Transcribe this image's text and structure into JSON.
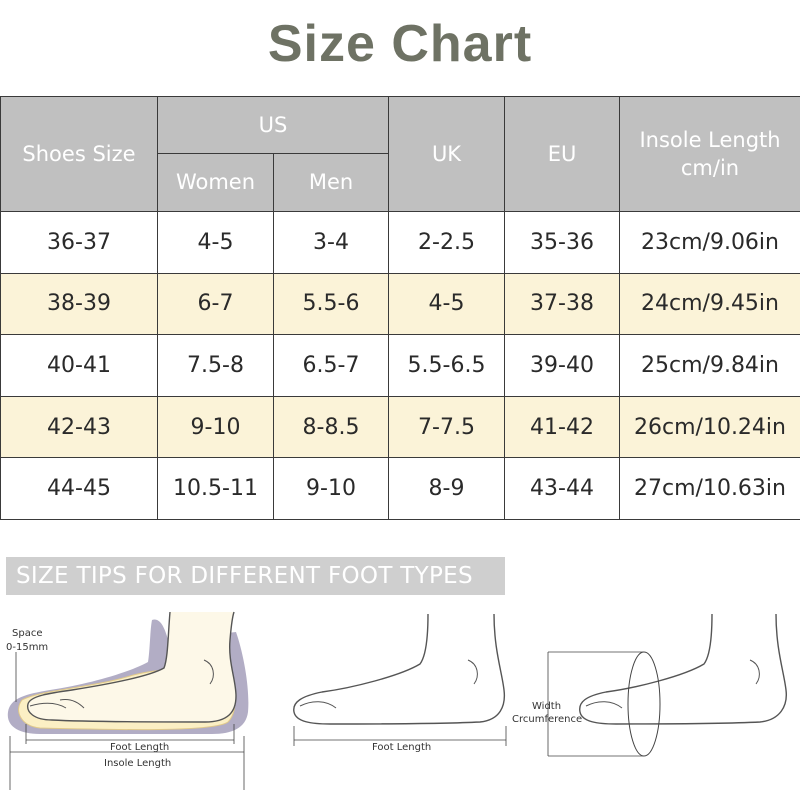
{
  "title": "Size Chart",
  "table": {
    "headers": {
      "shoes_size": "Shoes Size",
      "us": "US",
      "women": "Women",
      "men": "Men",
      "uk": "UK",
      "eu": "EU",
      "insole_line1": "Insole Length",
      "insole_line2": "cm/in"
    },
    "rows": [
      {
        "shoes": "36-37",
        "women": "4-5",
        "men": "3-4",
        "uk": "2-2.5",
        "eu": "35-36",
        "insole": "23cm/9.06in"
      },
      {
        "shoes": "38-39",
        "women": "6-7",
        "men": "5.5-6",
        "uk": "4-5",
        "eu": "37-38",
        "insole": "24cm/9.45in"
      },
      {
        "shoes": "40-41",
        "women": "7.5-8",
        "men": "6.5-7",
        "uk": "5.5-6.5",
        "eu": "39-40",
        "insole": "25cm/9.84in"
      },
      {
        "shoes": "42-43",
        "women": "9-10",
        "men": "8-8.5",
        "uk": "7-7.5",
        "eu": "41-42",
        "insole": "26cm/10.24in"
      },
      {
        "shoes": "44-45",
        "women": "10.5-11",
        "men": "9-10",
        "uk": "8-9",
        "eu": "43-44",
        "insole": "27cm/10.63in"
      }
    ]
  },
  "colors": {
    "title": "#6e7264",
    "header_bg": "#c0c0c0",
    "row_alt_bg": "#fbf3d8",
    "insole_shadow": "#a59fbb",
    "foot_fill": "#fdf8e8"
  },
  "tips": {
    "banner": "SIZE TIPS FOR DIFFERENT FOOT TYPES",
    "fig1": {
      "space_line1": "Space",
      "space_line2": "0-15mm",
      "foot_length": "Foot Length",
      "insole_length": "Insole Length"
    },
    "fig2": {
      "foot_length": "Foot Length"
    },
    "fig3": {
      "width_line1": "Width",
      "width_line2": "Crcumference"
    }
  }
}
